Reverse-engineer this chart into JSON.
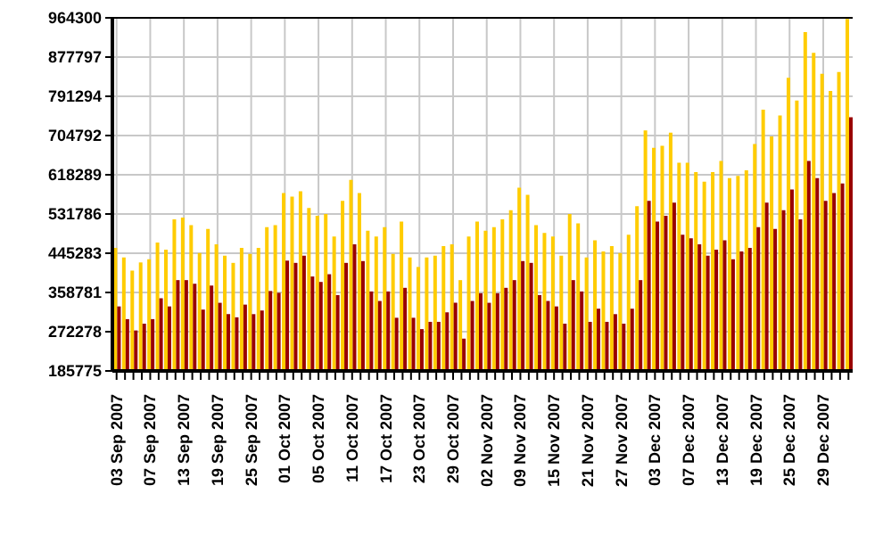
{
  "chart_data": {
    "type": "bar",
    "categories": [
      "03 Sep 2007",
      null,
      null,
      null,
      "07 Sep 2007",
      null,
      null,
      null,
      "13 Sep 2007",
      null,
      null,
      null,
      "19 Sep 2007",
      null,
      null,
      null,
      "25 Sep 2007",
      null,
      null,
      null,
      "01 Oct 2007",
      null,
      null,
      null,
      "05 Oct 2007",
      null,
      null,
      null,
      "11 Oct 2007",
      null,
      null,
      null,
      "17 Oct 2007",
      null,
      null,
      null,
      "23 Oct 2007",
      null,
      null,
      null,
      "29 Oct 2007",
      null,
      null,
      null,
      "02 Nov 2007",
      null,
      null,
      null,
      "09 Nov 2007",
      null,
      null,
      null,
      "15 Nov 2007",
      null,
      null,
      null,
      "21 Nov 2007",
      null,
      null,
      null,
      "27 Nov 2007",
      null,
      null,
      null,
      "03 Dec 2007",
      null,
      null,
      null,
      "07 Dec 2007",
      null,
      null,
      null,
      "13 Dec 2007",
      null,
      null,
      null,
      "19 Dec 2007",
      null,
      null,
      null,
      "25 Dec 2007",
      null,
      null,
      null,
      "29 Dec 2007",
      null,
      null,
      null
    ],
    "series": [
      {
        "color": "#ffcc00",
        "values": [
          457000,
          436000,
          407000,
          425000,
          432000,
          469000,
          453000,
          520000,
          524000,
          507000,
          446000,
          499000,
          465000,
          440000,
          424000,
          457000,
          444000,
          457000,
          503000,
          507000,
          578000,
          570000,
          582000,
          545000,
          528000,
          532000,
          482000,
          561000,
          607000,
          578000,
          495000,
          482000,
          503000,
          444000,
          515000,
          436000,
          415000,
          436000,
          440000,
          461000,
          465000,
          386000,
          482000,
          515000,
          495000,
          503000,
          520000,
          540000,
          590000,
          574000,
          507000,
          490000,
          482000,
          440000,
          532000,
          511000,
          436000,
          474000,
          449000,
          461000,
          446000,
          486000,
          549000,
          716000,
          678000,
          682000,
          711000,
          645000,
          645000,
          624000,
          603000,
          624000,
          649000,
          611000,
          616000,
          628000,
          686000,
          762000,
          703000,
          749000,
          832000,
          782000,
          933000,
          887000,
          841000,
          803000,
          845000,
          962000
        ]
      },
      {
        "color": "#990000",
        "values": [
          328000,
          300000,
          275000,
          290000,
          300000,
          346000,
          328000,
          386000,
          386000,
          378000,
          321000,
          374000,
          336000,
          311000,
          304000,
          332000,
          311000,
          319000,
          362000,
          358000,
          429000,
          424000,
          440000,
          394000,
          382000,
          399000,
          353000,
          424000,
          465000,
          428000,
          361000,
          340000,
          361000,
          303000,
          369000,
          303000,
          278000,
          294000,
          294000,
          315000,
          336000,
          257000,
          340000,
          357000,
          336000,
          357000,
          369000,
          386000,
          428000,
          424000,
          353000,
          340000,
          328000,
          290000,
          386000,
          361000,
          294000,
          323000,
          294000,
          311000,
          290000,
          323000,
          386000,
          561000,
          515000,
          528000,
          557000,
          486000,
          478000,
          465000,
          440000,
          453000,
          474000,
          432000,
          449000,
          457000,
          503000,
          557000,
          499000,
          540000,
          586000,
          520000,
          649000,
          611000,
          561000,
          578000,
          599000,
          745000
        ]
      }
    ],
    "ylim": [
      185775,
      964300
    ],
    "yticks": [
      185775,
      272278,
      358781,
      445283,
      531786,
      618289,
      704792,
      791294,
      877797,
      964300
    ],
    "grid": true
  }
}
